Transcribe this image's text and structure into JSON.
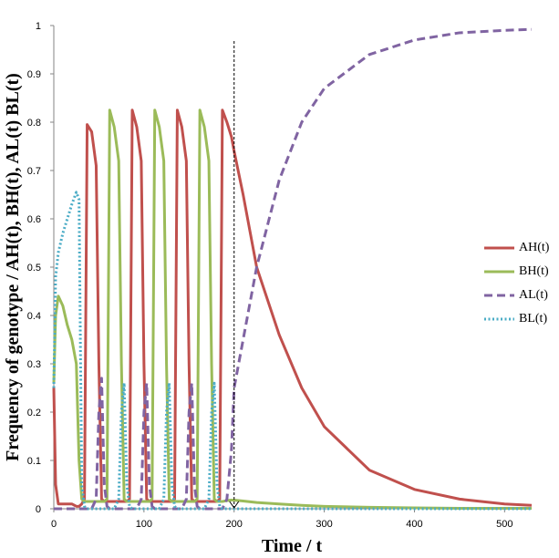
{
  "chart_data": {
    "type": "line",
    "xlabel": "Time  / t",
    "ylabel": "Frequency of genotype / AH(t), BH(t), AL(t) BL(t)",
    "x": [
      0,
      2,
      5,
      10,
      15,
      20,
      25,
      28,
      31,
      34,
      37,
      42,
      47,
      50,
      53,
      56,
      59,
      62,
      67,
      72,
      75,
      78,
      81,
      84,
      87,
      92,
      97,
      100,
      103,
      106,
      109,
      112,
      117,
      122,
      125,
      128,
      131,
      134,
      137,
      142,
      147,
      150,
      153,
      156,
      159,
      162,
      167,
      172,
      175,
      178,
      181,
      184,
      187,
      192,
      197,
      200,
      210,
      225,
      250,
      275,
      300,
      350,
      400,
      450,
      500,
      530
    ],
    "series": [
      {
        "name": "AH(t)",
        "color": "#c0504d",
        "style": "solid",
        "values": [
          0.25,
          0.05,
          0.01,
          0.01,
          0.01,
          0.01,
          0.005,
          0.005,
          0.01,
          0.02,
          0.795,
          0.78,
          0.71,
          0.3,
          0.02,
          0.015,
          0.015,
          0.015,
          0.015,
          0.015,
          0.015,
          0.015,
          0.015,
          0.02,
          0.825,
          0.79,
          0.72,
          0.3,
          0.02,
          0.015,
          0.015,
          0.015,
          0.015,
          0.015,
          0.015,
          0.015,
          0.015,
          0.02,
          0.825,
          0.79,
          0.72,
          0.3,
          0.02,
          0.015,
          0.015,
          0.015,
          0.015,
          0.015,
          0.015,
          0.015,
          0.015,
          0.02,
          0.825,
          0.8,
          0.77,
          0.74,
          0.65,
          0.5,
          0.36,
          0.25,
          0.17,
          0.08,
          0.04,
          0.02,
          0.01,
          0.007
        ]
      },
      {
        "name": "BH(t)",
        "color": "#9bbb59",
        "style": "solid",
        "values": [
          0.26,
          0.4,
          0.44,
          0.42,
          0.38,
          0.35,
          0.3,
          0.1,
          0.02,
          0.015,
          0.015,
          0.015,
          0.015,
          0.015,
          0.015,
          0.015,
          0.02,
          0.825,
          0.79,
          0.72,
          0.3,
          0.02,
          0.015,
          0.015,
          0.015,
          0.015,
          0.015,
          0.015,
          0.015,
          0.015,
          0.02,
          0.825,
          0.79,
          0.72,
          0.3,
          0.02,
          0.015,
          0.015,
          0.015,
          0.015,
          0.015,
          0.015,
          0.015,
          0.015,
          0.02,
          0.825,
          0.79,
          0.72,
          0.3,
          0.02,
          0.015,
          0.015,
          0.015,
          0.017,
          0.018,
          0.018,
          0.016,
          0.013,
          0.01,
          0.007,
          0.005,
          0.003,
          0.002,
          0.001,
          0.001,
          0.001
        ]
      },
      {
        "name": "AL(t)",
        "color": "#8064a2",
        "style": "dashed",
        "values": [
          0,
          0,
          0,
          0,
          0,
          0,
          0,
          0,
          0,
          0,
          0,
          0,
          0.02,
          0.2,
          0.27,
          0.05,
          0.005,
          0,
          0,
          0,
          0,
          0,
          0,
          0,
          0,
          0,
          0.02,
          0.2,
          0.26,
          0.05,
          0.005,
          0,
          0,
          0,
          0,
          0,
          0,
          0,
          0,
          0,
          0.02,
          0.2,
          0.26,
          0.05,
          0.005,
          0,
          0,
          0,
          0,
          0,
          0,
          0,
          0,
          0.02,
          0.12,
          0.25,
          0.35,
          0.5,
          0.68,
          0.8,
          0.87,
          0.94,
          0.97,
          0.985,
          0.99,
          0.992
        ]
      },
      {
        "name": "BL(t)",
        "color": "#4bacc6",
        "style": "dotted",
        "values": [
          0.25,
          0.48,
          0.53,
          0.57,
          0.6,
          0.63,
          0.655,
          0.64,
          0.05,
          0.005,
          0,
          0,
          0,
          0,
          0,
          0,
          0,
          0,
          0,
          0.02,
          0.2,
          0.26,
          0.05,
          0.005,
          0,
          0,
          0,
          0,
          0,
          0,
          0,
          0,
          0,
          0.02,
          0.2,
          0.26,
          0.05,
          0.005,
          0,
          0,
          0,
          0,
          0,
          0,
          0,
          0,
          0,
          0.02,
          0.2,
          0.26,
          0.05,
          0.005,
          0,
          0,
          0,
          0,
          0,
          0,
          0,
          0,
          0,
          0,
          0,
          0,
          0,
          0
        ]
      }
    ],
    "xlim": [
      0,
      530
    ],
    "xticks": [
      0,
      100,
      200,
      300,
      400,
      500
    ],
    "ylim": [
      0,
      1
    ],
    "yticks": [
      0,
      0.1,
      0.2,
      0.3,
      0.4,
      0.5,
      0.6,
      0.7,
      0.8,
      0.9,
      1
    ],
    "grid": false,
    "legend": "right",
    "marker_line_x": 200
  }
}
